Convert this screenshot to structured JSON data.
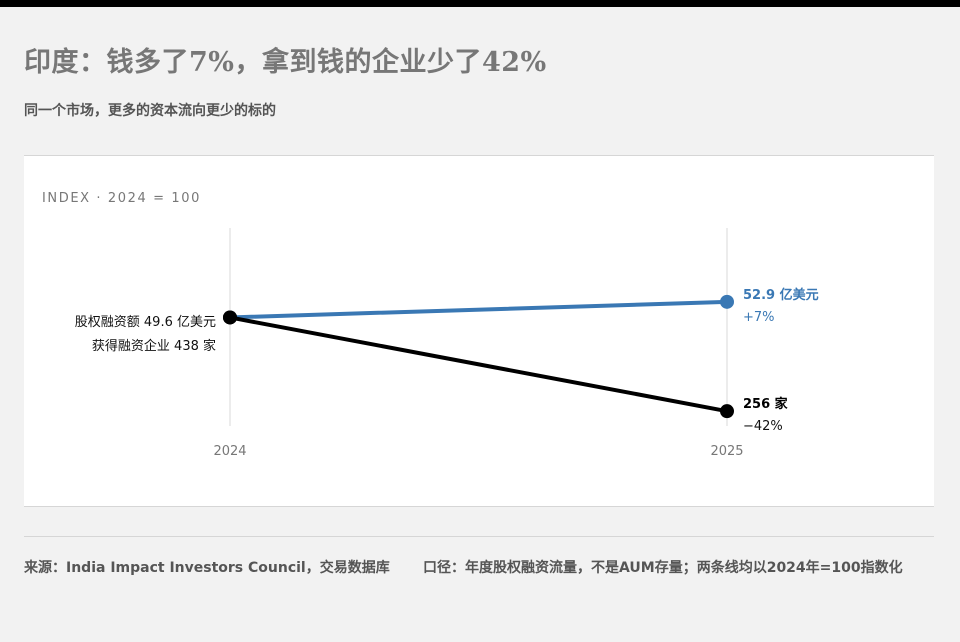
{
  "title": "印度：钱多了7%，拿到钱的企业少了42%",
  "subtitle": "同一个市场，更多的资本流向更少的标的",
  "chart_data": {
    "type": "line",
    "axis_caption": "INDEX · 2024 = 100",
    "x": [
      "2024",
      "2025"
    ],
    "ylim": [
      50,
      115
    ],
    "series": [
      {
        "name": "股权融资额",
        "color": "#3a78b4",
        "values": [
          100,
          107
        ],
        "start_label": "股权融资额 49.6 亿美元",
        "end_label": "52.9 亿美元",
        "end_change": "+7%"
      },
      {
        "name": "获得融资企业",
        "color": "#000000",
        "values": [
          100,
          58
        ],
        "start_label": "获得融资企业 438 家",
        "end_label": "256 家",
        "end_change": "−42%"
      }
    ]
  },
  "footer": {
    "source": "来源：India Impact Investors Council，交易数据库",
    "note": "口径：年度股权融资流量，不是AUM存量；两条线均以2024年=100指数化"
  }
}
